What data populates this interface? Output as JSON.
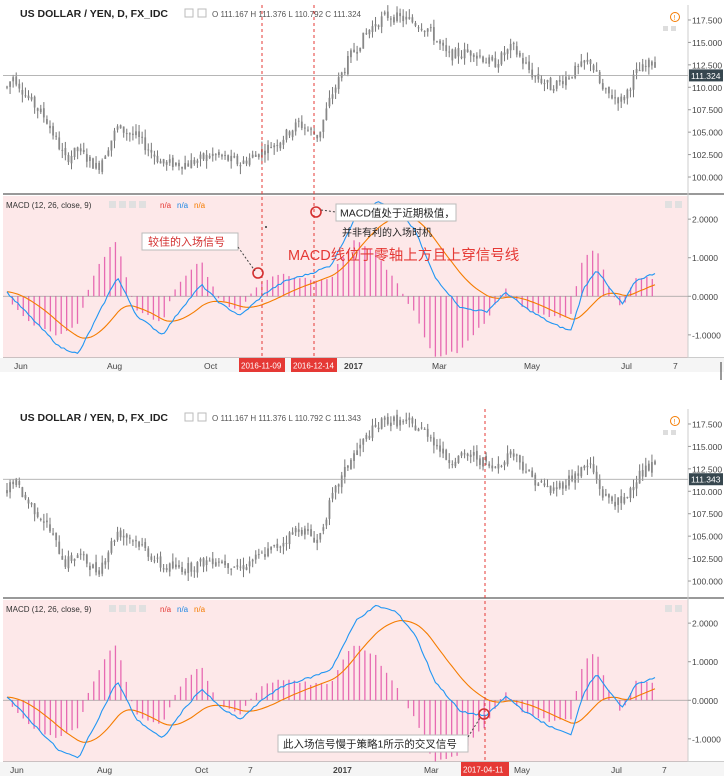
{
  "charts": [
    {
      "symbol": "US DOLLAR / YEN, D, FX_IDC",
      "ohlc_text": "O 111.167 H 111.376 L 110.792 C 111.324",
      "last_price": "111.324",
      "price_ticks": [
        "117.500",
        "115.000",
        "112.500",
        "110.000",
        "107.500",
        "105.000",
        "102.500",
        "100.000"
      ],
      "macd_label": "MACD (12, 26, close, 9)",
      "macd_values": [
        "n/a",
        "n/a",
        "n/a"
      ],
      "macd_ticks": [
        "2.0000",
        "1.0000",
        "0.0000",
        "-1.0000"
      ],
      "x_ticks": [
        "Jun",
        "Aug",
        "Oct",
        "2017",
        "Mar",
        "May",
        "Jul",
        "7"
      ],
      "vlines": [
        "2016-11-09",
        "2016-12-14"
      ],
      "annotations": [
        {
          "id": "good-entry",
          "text": "较佳的入场信号",
          "color": "#d32f2f"
        },
        {
          "id": "macd-extreme",
          "text": "MACD值处于近期极值，",
          "color": "#222222"
        },
        {
          "id": "macd-extreme-2",
          "text": "并非有利的入场时机",
          "color": "#222222"
        },
        {
          "id": "cross-above",
          "text": "MACD线位于零轴上方且上穿信号线",
          "color": "#e53935"
        }
      ]
    },
    {
      "symbol": "US DOLLAR / YEN, D, FX_IDC",
      "ohlc_text": "O 111.167 H 111.376 L 110.792 C 111.343",
      "last_price": "111.343",
      "price_ticks": [
        "117.500",
        "115.000",
        "112.500",
        "110.000",
        "107.500",
        "105.000",
        "102.500",
        "100.000"
      ],
      "macd_label": "MACD (12, 26, close, 9)",
      "macd_values": [
        "n/a",
        "n/a",
        "n/a"
      ],
      "macd_ticks": [
        "2.0000",
        "1.0000",
        "0.0000",
        "-1.0000"
      ],
      "x_ticks": [
        "Jun",
        "Aug",
        "Oct",
        "7",
        "2017",
        "Mar",
        "May",
        "Jul",
        "7"
      ],
      "vlines": [
        "2017-04-11"
      ],
      "annotations": [
        {
          "id": "late-entry",
          "text": "此入场信号慢于策略1所示的交叉信号",
          "color": "#222222"
        }
      ]
    }
  ],
  "chart_data": [
    {
      "type": "candlestick",
      "title": "US DOLLAR / YEN, D, FX_IDC",
      "x": [
        "2016-05",
        "2016-06",
        "2016-07",
        "2016-08",
        "2016-09",
        "2016-10",
        "2016-11",
        "2016-12",
        "2017-01",
        "2017-02",
        "2017-03",
        "2017-04",
        "2017-05",
        "2017-06",
        "2017-07"
      ],
      "close": [
        109.5,
        106.0,
        103.5,
        101.5,
        101.0,
        104.5,
        112.5,
        117.5,
        116.0,
        113.5,
        112.0,
        109.0,
        112.5,
        111.0,
        113.5
      ],
      "ylim": [
        99,
        118.5
      ],
      "last_price": 111.324,
      "macd": {
        "name": "MACD (12, 26, close, 9)",
        "ylim": [
          -1.6,
          2.6
        ],
        "macd_line": [
          0.3,
          -0.8,
          -1.4,
          -0.4,
          -0.3,
          0.4,
          1.6,
          2.3,
          0.8,
          -0.4,
          -0.2,
          -0.8,
          0.7,
          -0.2,
          0.6
        ],
        "signal_line": [
          0.2,
          -0.5,
          -1.2,
          -0.6,
          -0.3,
          0.3,
          1.2,
          2.2,
          1.2,
          0.0,
          -0.2,
          -0.6,
          0.4,
          -0.1,
          0.5
        ]
      },
      "vlines": [
        "2016-11-09",
        "2016-12-14"
      ]
    },
    {
      "type": "candlestick",
      "title": "US DOLLAR / YEN, D, FX_IDC",
      "x": [
        "2016-05",
        "2016-06",
        "2016-07",
        "2016-08",
        "2016-09",
        "2016-10",
        "2016-11",
        "2016-12",
        "2017-01",
        "2017-02",
        "2017-03",
        "2017-04",
        "2017-05",
        "2017-06",
        "2017-07"
      ],
      "close": [
        109.5,
        106.0,
        103.5,
        101.5,
        101.0,
        104.5,
        112.5,
        117.5,
        116.0,
        113.5,
        112.0,
        109.0,
        112.5,
        111.0,
        113.5
      ],
      "ylim": [
        99,
        118.5
      ],
      "last_price": 111.343,
      "macd": {
        "name": "MACD (12, 26, close, 9)",
        "ylim": [
          -1.6,
          2.6
        ],
        "macd_line": [
          0.3,
          -0.8,
          -1.4,
          -0.4,
          -0.3,
          0.4,
          1.6,
          2.3,
          0.8,
          -0.4,
          -0.2,
          -0.8,
          0.7,
          -0.2,
          0.6
        ],
        "signal_line": [
          0.2,
          -0.5,
          -1.2,
          -0.6,
          -0.3,
          0.3,
          1.2,
          2.2,
          1.2,
          0.0,
          -0.2,
          -0.6,
          0.4,
          -0.1,
          0.5
        ]
      },
      "vlines": [
        "2017-04-11"
      ]
    }
  ]
}
